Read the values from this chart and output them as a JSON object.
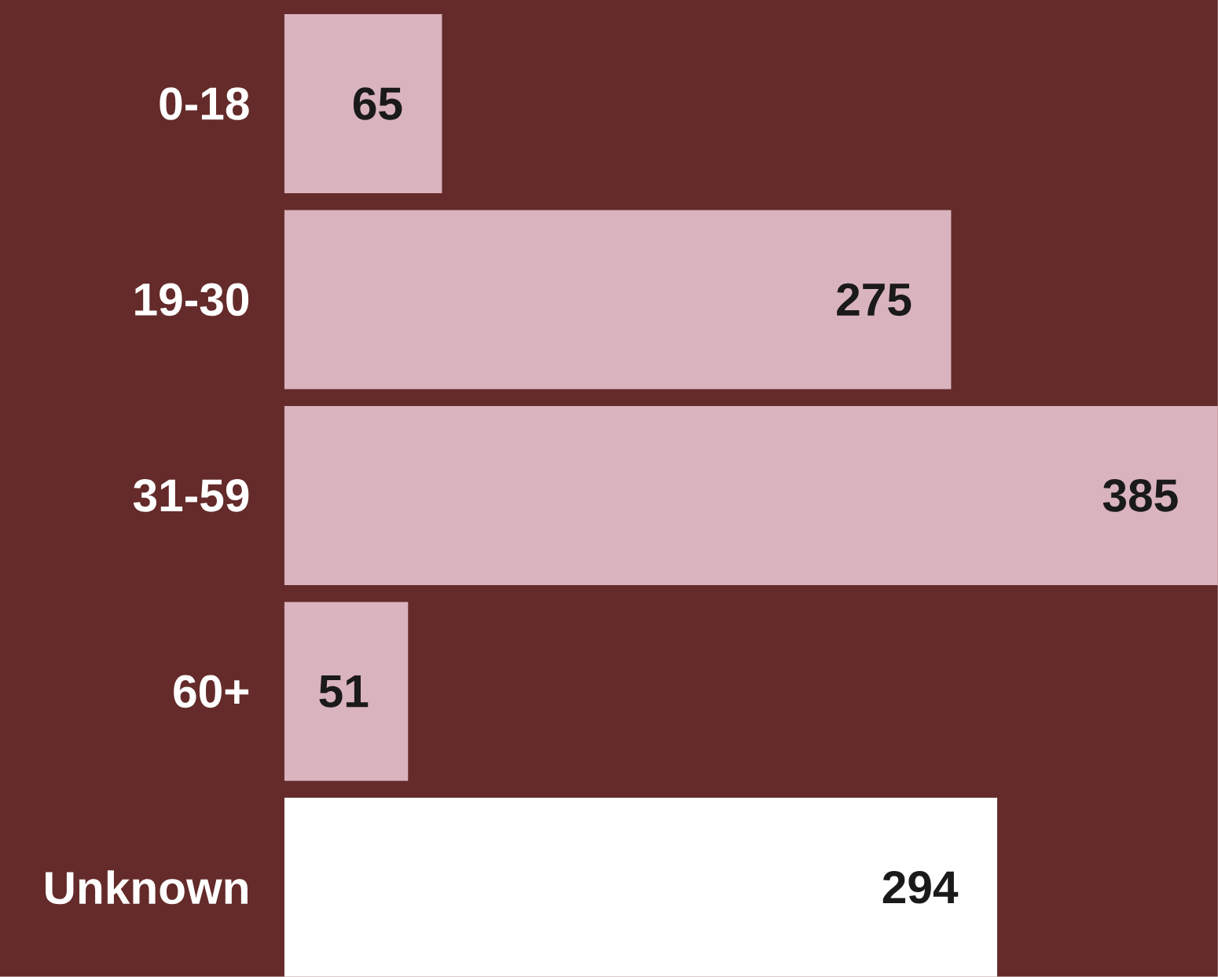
{
  "chart_data": {
    "type": "bar",
    "orientation": "horizontal",
    "categories": [
      "0-18",
      "19-30",
      "31-59",
      "60+",
      "Unknown"
    ],
    "values": [
      65,
      275,
      385,
      51,
      294
    ],
    "colors": [
      "#d9b3bd",
      "#d9b3bd",
      "#d9b3bd",
      "#d9b3bd",
      "#ffffff"
    ],
    "data_labels": true,
    "tick_labels": "y"
  }
}
